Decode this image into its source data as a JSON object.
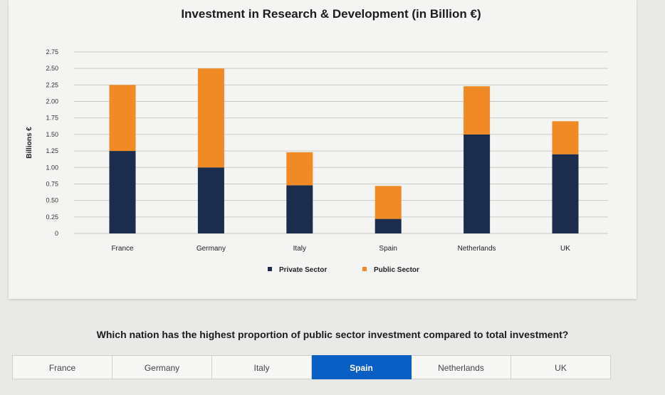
{
  "chart_data": {
    "type": "bar",
    "stacked": true,
    "title": "Investment in Research & Development (in Billion €)",
    "ylabel": "Billions €",
    "xlabel": "",
    "ylim": [
      0,
      2.75
    ],
    "yticks": [
      0,
      0.25,
      0.5,
      0.75,
      1.0,
      1.25,
      1.5,
      1.75,
      2.0,
      2.25,
      2.5,
      2.75
    ],
    "ytick_labels": [
      "0",
      "0.25",
      "0.50",
      "0.75",
      "1.00",
      "1.25",
      "1.50",
      "1.75",
      "2.00",
      "2.25",
      "2.50",
      "2.75"
    ],
    "grid": true,
    "legend_position": "bottom",
    "categories": [
      "France",
      "Germany",
      "Italy",
      "Spain",
      "Netherlands",
      "UK"
    ],
    "series": [
      {
        "name": "Private Sector",
        "color": "#1b2c4c",
        "values": [
          1.25,
          1.0,
          0.73,
          0.22,
          1.5,
          1.2
        ]
      },
      {
        "name": "Public Sector",
        "color": "#f08a24",
        "values": [
          1.0,
          1.5,
          0.5,
          0.5,
          0.73,
          0.5
        ]
      }
    ]
  },
  "quiz": {
    "question": "Which nation has the highest proportion of public sector investment compared to total investment?",
    "options": [
      "France",
      "Germany",
      "Italy",
      "Spain",
      "Netherlands",
      "UK"
    ],
    "selected": "Spain"
  }
}
